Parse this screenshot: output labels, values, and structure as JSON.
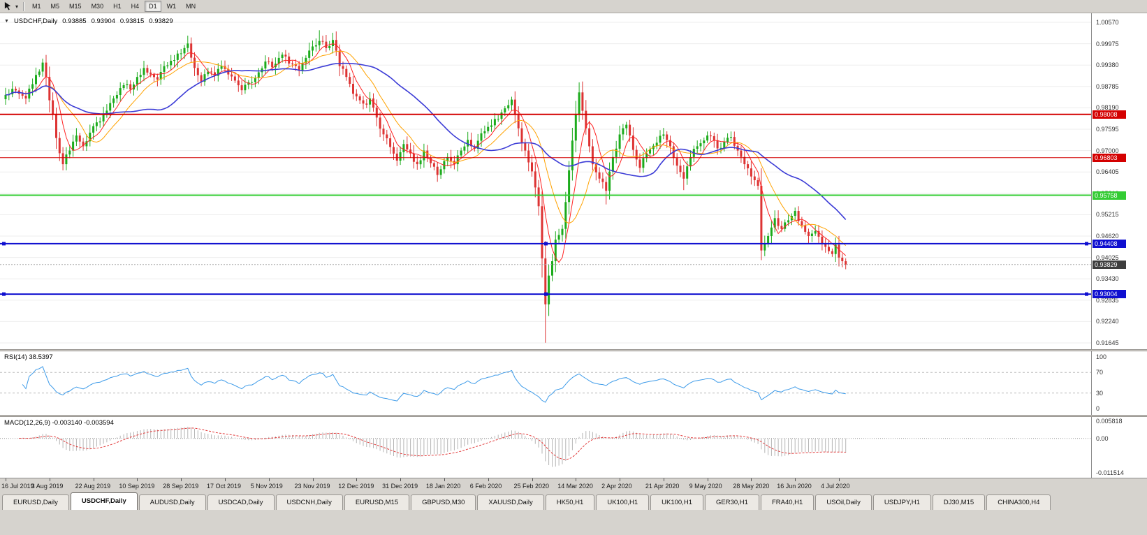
{
  "toolbar": {
    "timeframes": [
      "M1",
      "M5",
      "M15",
      "M30",
      "H1",
      "H4",
      "D1",
      "W1",
      "MN"
    ],
    "active_timeframe": "D1"
  },
  "chart": {
    "title": "USDCHF,Daily",
    "open": "0.93885",
    "high": "0.93904",
    "low": "0.93815",
    "close": "0.93829"
  },
  "chart_data": {
    "type": "candlestick",
    "symbol": "USDCHF",
    "timeframe": "Daily",
    "x_labels": [
      "16 Jul 2019",
      "3 Aug 2019",
      "22 Aug 2019",
      "10 Sep 2019",
      "28 Sep 2019",
      "17 Oct 2019",
      "5 Nov 2019",
      "23 Nov 2019",
      "12 Dec 2019",
      "31 Dec 2019",
      "18 Jan 2020",
      "6 Feb 2020",
      "25 Feb 2020",
      "14 Mar 2020",
      "2 Apr 2020",
      "21 Apr 2020",
      "9 May 2020",
      "28 May 2020",
      "16 Jun 2020",
      "4 Jul 2020"
    ],
    "bars_per_label": 13,
    "y_axis": {
      "min": 0.91645,
      "max": 1.0057,
      "step": 0.00595,
      "labels": [
        "1.00570",
        "0.99975",
        "0.99380",
        "0.98785",
        "0.98190",
        "0.97595",
        "0.97000",
        "0.96405",
        "0.95810",
        "0.95215",
        "0.94620",
        "0.94025",
        "0.93430",
        "0.92835",
        "0.92240",
        "0.91645"
      ]
    },
    "colors": {
      "up": "#1cab1c",
      "down": "#dd3333",
      "background": "#ffffff",
      "grid": "#ededed",
      "current_badge": "#3d3d3d"
    },
    "levels": [
      {
        "price": 0.98008,
        "badge": "0.98008",
        "color": "#d40000",
        "width": 2,
        "handles": false
      },
      {
        "price": 0.96803,
        "badge": "0.96803",
        "color": "#d40000",
        "width": 1,
        "handles": false
      },
      {
        "price": 0.95758,
        "badge": "0.95758",
        "color": "#33cc33",
        "width": 2,
        "handles": false
      },
      {
        "price": 0.94408,
        "badge": "0.94408",
        "color": "#0f0fd0",
        "width": 2,
        "handles": true
      },
      {
        "price": 0.93004,
        "badge": "0.93004",
        "color": "#0f0fd0",
        "width": 2,
        "handles": true
      }
    ],
    "current_price": 0.93829,
    "current_price_label": "0.93829",
    "ma": [
      {
        "period": 6,
        "color": "#ff2222"
      },
      {
        "period": 13,
        "color": "#ffa200"
      },
      {
        "period": 34,
        "color": "#3b3bd6"
      }
    ],
    "candles": {
      "count": 250,
      "noise": 0.0009,
      "anchors": [
        [
          0,
          0.9855
        ],
        [
          2,
          0.9872
        ],
        [
          4,
          0.9858
        ],
        [
          6,
          0.9845
        ],
        [
          8,
          0.9885
        ],
        [
          10,
          0.992
        ],
        [
          11,
          0.9945
        ],
        [
          12,
          0.9905
        ],
        [
          13,
          0.984
        ],
        [
          14,
          0.98
        ],
        [
          15,
          0.9735
        ],
        [
          17,
          0.9662
        ],
        [
          19,
          0.97
        ],
        [
          21,
          0.9742
        ],
        [
          23,
          0.9712
        ],
        [
          26,
          0.9768
        ],
        [
          29,
          0.98
        ],
        [
          32,
          0.9845
        ],
        [
          35,
          0.9882
        ],
        [
          37,
          0.987
        ],
        [
          39,
          0.9905
        ],
        [
          41,
          0.993
        ],
        [
          43,
          0.9912
        ],
        [
          45,
          0.9898
        ],
        [
          47,
          0.9935
        ],
        [
          49,
          0.995
        ],
        [
          51,
          0.997
        ],
        [
          54,
          0.9998
        ],
        [
          56,
          0.993
        ],
        [
          58,
          0.9892
        ],
        [
          60,
          0.992
        ],
        [
          62,
          0.9908
        ],
        [
          64,
          0.9935
        ],
        [
          66,
          0.9912
        ],
        [
          68,
          0.9895
        ],
        [
          70,
          0.9868
        ],
        [
          72,
          0.989
        ],
        [
          75,
          0.9918
        ],
        [
          77,
          0.9948
        ],
        [
          79,
          0.9932
        ],
        [
          81,
          0.9958
        ],
        [
          83,
          0.9962
        ],
        [
          85,
          0.994
        ],
        [
          87,
          0.9922
        ],
        [
          89,
          0.9958
        ],
        [
          91,
          0.999
        ],
        [
          93,
          1.0005
        ],
        [
          95,
          0.9985
        ],
        [
          97,
          1.0008
        ],
        [
          98,
          0.9978
        ],
        [
          99,
          0.9935
        ],
        [
          101,
          0.9905
        ],
        [
          103,
          0.9858
        ],
        [
          105,
          0.984
        ],
        [
          107,
          0.9828
        ],
        [
          108,
          0.9845
        ],
        [
          110,
          0.9792
        ],
        [
          112,
          0.9745
        ],
        [
          114,
          0.971
        ],
        [
          116,
          0.9672
        ],
        [
          118,
          0.9718
        ],
        [
          120,
          0.9692
        ],
        [
          122,
          0.9662
        ],
        [
          124,
          0.97
        ],
        [
          126,
          0.9665
        ],
        [
          128,
          0.9632
        ],
        [
          129,
          0.9648
        ],
        [
          131,
          0.9682
        ],
        [
          133,
          0.9662
        ],
        [
          135,
          0.97
        ],
        [
          137,
          0.973
        ],
        [
          139,
          0.9705
        ],
        [
          141,
          0.9748
        ],
        [
          143,
          0.9766
        ],
        [
          145,
          0.9788
        ],
        [
          147,
          0.9806
        ],
        [
          150,
          0.9842
        ],
        [
          152,
          0.9762
        ],
        [
          154,
          0.97
        ],
        [
          156,
          0.9642
        ],
        [
          158,
          0.9545
        ],
        [
          160,
          0.9272
        ],
        [
          161,
          0.9352
        ],
        [
          162,
          0.9392
        ],
        [
          163,
          0.9452
        ],
        [
          165,
          0.9482
        ],
        [
          167,
          0.9645
        ],
        [
          169,
          0.9802
        ],
        [
          170,
          0.9862
        ],
        [
          172,
          0.9762
        ],
        [
          174,
          0.9662
        ],
        [
          176,
          0.9622
        ],
        [
          178,
          0.9588
        ],
        [
          180,
          0.9682
        ],
        [
          182,
          0.9745
        ],
        [
          184,
          0.9772
        ],
        [
          186,
          0.9702
        ],
        [
          188,
          0.9652
        ],
        [
          190,
          0.9692
        ],
        [
          193,
          0.9722
        ],
        [
          195,
          0.9745
        ],
        [
          197,
          0.9712
        ],
        [
          199,
          0.9658
        ],
        [
          201,
          0.9622
        ],
        [
          203,
          0.9682
        ],
        [
          205,
          0.9712
        ],
        [
          207,
          0.9728
        ],
        [
          209,
          0.974
        ],
        [
          211,
          0.9706
        ],
        [
          213,
          0.9724
        ],
        [
          215,
          0.9738
        ],
        [
          217,
          0.97
        ],
        [
          219,
          0.9662
        ],
        [
          221,
          0.9628
        ],
        [
          223,
          0.9602
        ],
        [
          224,
          0.9422
        ],
        [
          226,
          0.9462
        ],
        [
          228,
          0.9512
        ],
        [
          230,
          0.9482
        ],
        [
          232,
          0.9506
        ],
        [
          234,
          0.9532
        ],
        [
          236,
          0.9492
        ],
        [
          238,
          0.9462
        ],
        [
          240,
          0.9476
        ],
        [
          242,
          0.9442
        ],
        [
          244,
          0.942
        ],
        [
          245,
          0.9412
        ],
        [
          246,
          0.9438
        ],
        [
          247,
          0.9402
        ],
        [
          248,
          0.9392
        ],
        [
          249,
          0.93829
        ]
      ],
      "spikes": [
        {
          "i": 11,
          "high": 0.9956
        },
        {
          "i": 17,
          "low": 0.9645
        },
        {
          "i": 54,
          "high": 1.002
        },
        {
          "i": 93,
          "high": 1.0035
        },
        {
          "i": 97,
          "high": 1.0028
        },
        {
          "i": 128,
          "low": 0.9613
        },
        {
          "i": 150,
          "high": 0.985
        },
        {
          "i": 160,
          "low": 0.9165
        },
        {
          "i": 170,
          "high": 0.989
        },
        {
          "i": 178,
          "low": 0.955
        },
        {
          "i": 201,
          "low": 0.959
        },
        {
          "i": 224,
          "low": 0.9395
        }
      ]
    },
    "rsi": {
      "label": "RSI(14) 38.5397",
      "period": 14,
      "value": 38.5397,
      "color": "#3d9be9",
      "levels": [
        70,
        30
      ],
      "axis": [
        "100",
        "70",
        "30",
        "0"
      ],
      "range": [
        0,
        100
      ]
    },
    "macd": {
      "label": "MACD(12,26,9) -0.003140 -0.003594",
      "fast": 12,
      "slow": 26,
      "signal": 9,
      "main_value": -0.00314,
      "signal_value": -0.003594,
      "axis": [
        "0.005818",
        "0.00",
        "-0.011514"
      ],
      "range": [
        -0.011514,
        0.005818
      ],
      "hist_color": "#b5b5b5",
      "signal_color": "#e23a3a"
    }
  },
  "tabs": {
    "active_index": 1,
    "items": [
      "EURUSD,Daily",
      "USDCHF,Daily",
      "AUDUSD,Daily",
      "USDCAD,Daily",
      "USDCNH,Daily",
      "EURUSD,M15",
      "GBPUSD,M30",
      "XAUUSD,Daily",
      "HK50,H1",
      "UK100,H1",
      "UK100,H1",
      "GER30,H1",
      "FRA40,H1",
      "USOil,Daily",
      "USDJPY,H1",
      "DJ30,M15",
      "CHINA300,H4"
    ]
  }
}
